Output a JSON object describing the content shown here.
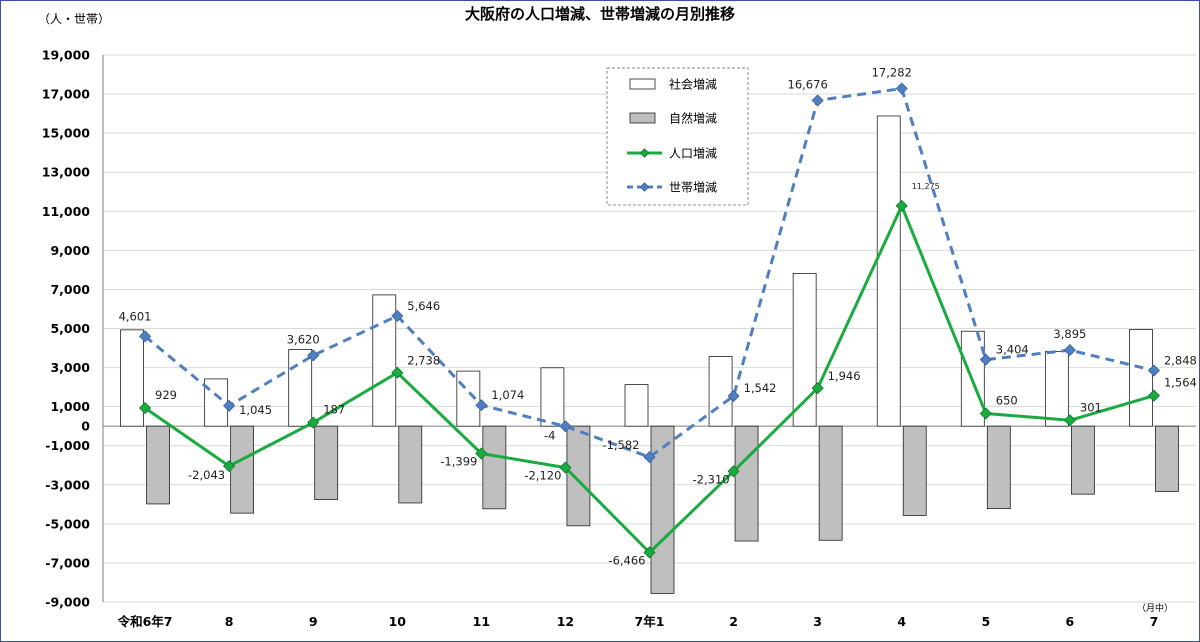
{
  "chart_data": {
    "type": "bar",
    "title": "大阪府の人口増減、世帯増減の月別推移",
    "ylabel": "（人・世帯）",
    "xunit": "（月中）",
    "ylim": [
      -9000,
      19000
    ],
    "yticks": [
      19000,
      17000,
      15000,
      13000,
      11000,
      9000,
      7000,
      5000,
      3000,
      1000,
      0,
      -1000,
      -3000,
      -5000,
      -7000,
      -9000
    ],
    "ytick_labels": [
      "19,000",
      "17,000",
      "15,000",
      "13,000",
      "11,000",
      "9,000",
      "7,000",
      "5,000",
      "3,000",
      "1,000",
      "0",
      "-1,000",
      "-3,000",
      "-5,000",
      "-7,000",
      "-9,000"
    ],
    "grid": true,
    "legend_position": "top-center",
    "categories": [
      "令和6年7",
      "8",
      "9",
      "10",
      "11",
      "12",
      "7年1",
      "2",
      "3",
      "4",
      "5",
      "6",
      "7"
    ],
    "series": [
      {
        "name": "社会増減",
        "type": "bar",
        "color": "#ffffff",
        "values": [
          4930,
          2420,
          3930,
          6720,
          2820,
          2990,
          2130,
          3570,
          7820,
          15880,
          4860,
          3820,
          4950
        ]
      },
      {
        "name": "自然増減",
        "type": "bar",
        "color": "#bfbfbf",
        "values": [
          -3980,
          -4450,
          -3760,
          -3930,
          -4230,
          -5100,
          -8560,
          -5880,
          -5840,
          -4570,
          -4220,
          -3480,
          -3340
        ]
      },
      {
        "name": "人口増減",
        "type": "line",
        "color": "#1aab40",
        "values": [
          929,
          -2043,
          187,
          2738,
          -1399,
          -2120,
          -6466,
          -2310,
          1946,
          11275,
          650,
          301,
          1564
        ],
        "labels": [
          "929",
          "-2,043",
          "187",
          "2,738",
          "-1,399",
          "-2,120",
          "-6,466",
          "-2,310",
          "1,946",
          "11,275",
          "650",
          "301",
          "1,564"
        ]
      },
      {
        "name": "世帯増減",
        "type": "line",
        "color": "#4f7fc0",
        "values": [
          4601,
          1045,
          3620,
          5646,
          1074,
          -4,
          -1582,
          1542,
          16676,
          17282,
          3404,
          3895,
          2848
        ],
        "labels": [
          "4,601",
          "1,045",
          "3,620",
          "5,646",
          "1,074",
          "-4",
          "-1,582",
          "1,542",
          "16,676",
          "17,282",
          "3,404",
          "3,895",
          "2,848"
        ]
      }
    ]
  }
}
